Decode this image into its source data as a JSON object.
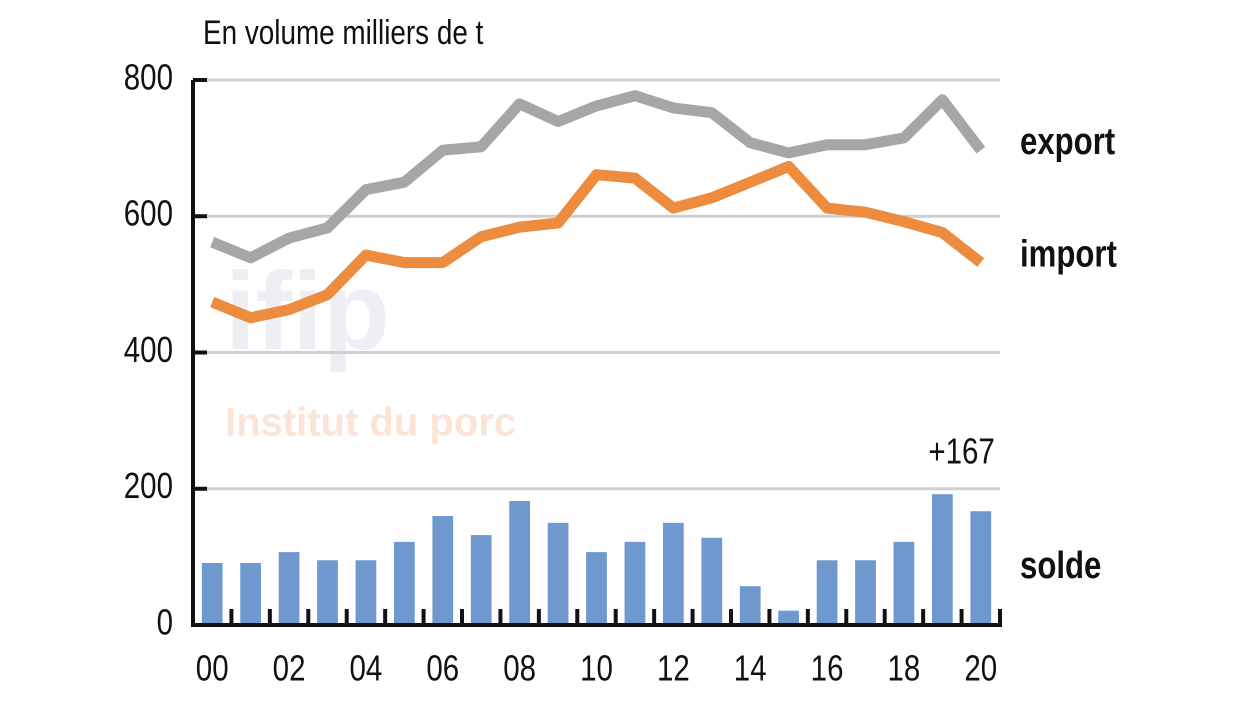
{
  "chart_data": {
    "type": "combo",
    "title": "En volume milliers de t",
    "categories": [
      "00",
      null,
      "02",
      null,
      "04",
      null,
      "06",
      null,
      "08",
      null,
      "10",
      null,
      "12",
      null,
      "14",
      null,
      "16",
      null,
      "18",
      null,
      "20"
    ],
    "series": [
      {
        "name": "export",
        "type": "line",
        "color": "#a6a6a6",
        "values": [
          562,
          539,
          568,
          583,
          639,
          650,
          697,
          702,
          765,
          739,
          762,
          777,
          759,
          752,
          708,
          693,
          705,
          705,
          715,
          771,
          697
        ]
      },
      {
        "name": "import",
        "type": "line",
        "color": "#ed8b3f",
        "values": [
          474,
          451,
          463,
          485,
          543,
          532,
          532,
          570,
          584,
          590,
          661,
          656,
          612,
          627,
          650,
          673,
          612,
          606,
          592,
          576,
          532
        ]
      },
      {
        "name": "solde",
        "type": "bar",
        "color": "#6f98cf",
        "values": [
          91,
          91,
          107,
          95,
          95,
          122,
          160,
          132,
          182,
          150,
          107,
          122,
          150,
          128,
          57,
          21,
          95,
          95,
          122,
          192,
          167
        ]
      }
    ],
    "annotation": "+167",
    "watermark": [
      "ifip",
      "Institut du porc"
    ],
    "ylim": [
      0,
      800
    ],
    "yticks": [
      0,
      200,
      400,
      600,
      800
    ],
    "grid": true
  }
}
